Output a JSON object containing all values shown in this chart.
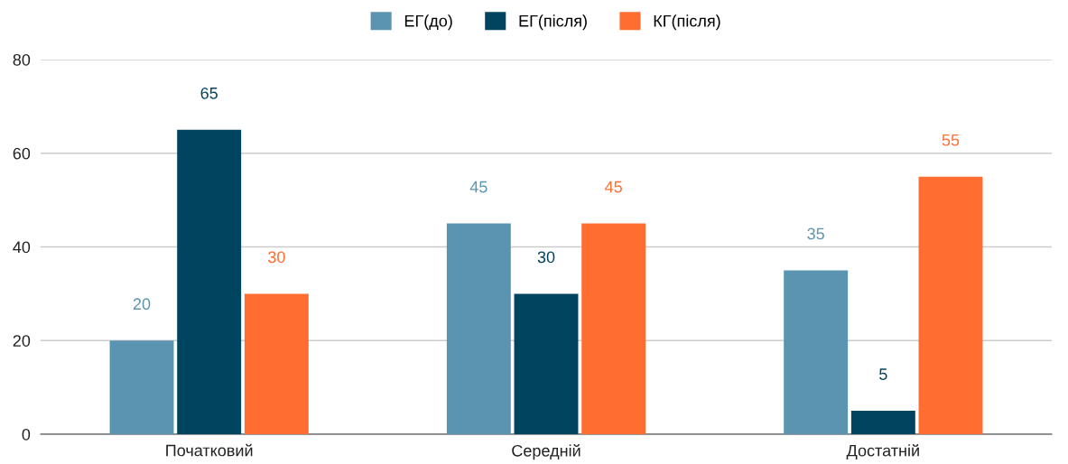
{
  "chart_data": {
    "type": "bar",
    "categories": [
      "Початковий",
      "Середній",
      "Достатній"
    ],
    "series": [
      {
        "name": "ЕГ(до)",
        "color": "#5b94b1",
        "values": [
          20,
          45,
          35
        ]
      },
      {
        "name": "ЕГ(після)",
        "color": "#01445f",
        "values": [
          65,
          30,
          5
        ]
      },
      {
        "name": "КГ(після)",
        "color": "#ff6d31",
        "values": [
          30,
          45,
          55
        ]
      }
    ],
    "ylim": [
      0,
      80
    ],
    "yticks": [
      0,
      20,
      40,
      60,
      80
    ],
    "grid": "y",
    "legend": "top",
    "data_labels": true
  }
}
